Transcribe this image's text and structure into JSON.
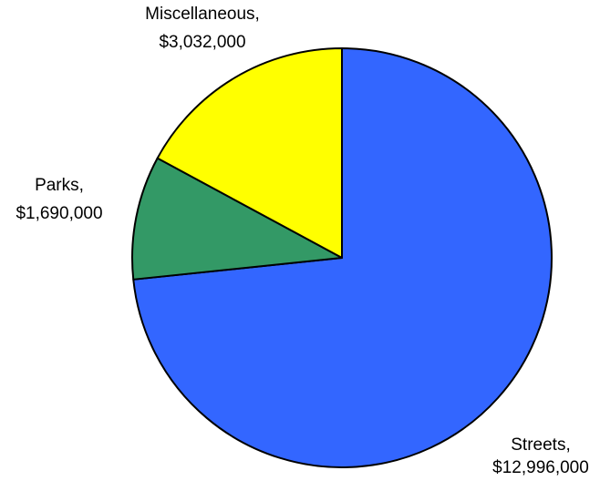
{
  "chart_data": {
    "type": "pie",
    "title": "",
    "slices": [
      {
        "name": "Streets",
        "value": 12996000,
        "label_line1": "Streets,",
        "label_line2": "$12,996,000",
        "color": "#3366ff"
      },
      {
        "name": "Parks",
        "value": 1690000,
        "label_line1": "Parks,",
        "label_line2": "$1,690,000",
        "color": "#339966"
      },
      {
        "name": "Miscellaneous",
        "value": 3032000,
        "label_line1": "Miscellaneous,",
        "label_line2": "$3,032,000",
        "color": "#ffff00"
      }
    ],
    "start_angle": "12 o'clock",
    "direction": "clockwise",
    "legend": "none",
    "outline_color": "#000000"
  }
}
